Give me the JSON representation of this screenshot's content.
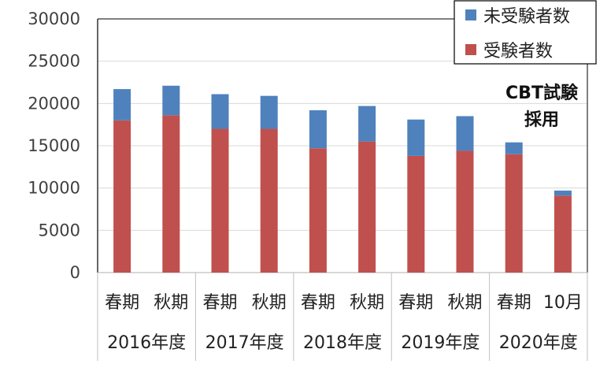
{
  "chart_data": {
    "type": "bar",
    "stacked": true,
    "categories": [
      "春期",
      "秋期",
      "春期",
      "秋期",
      "春期",
      "秋期",
      "春期",
      "秋期",
      "春期",
      "10月"
    ],
    "groups": [
      {
        "label": "2016年度",
        "span": 2
      },
      {
        "label": "2017年度",
        "span": 2
      },
      {
        "label": "2018年度",
        "span": 2
      },
      {
        "label": "2019年度",
        "span": 2
      },
      {
        "label": "2020年度",
        "span": 2
      }
    ],
    "series": [
      {
        "name": "受験者数",
        "color": "#c0504d",
        "values": [
          18000,
          18600,
          17000,
          17000,
          14700,
          15500,
          13800,
          14400,
          14000,
          9100
        ]
      },
      {
        "name": "未受験者数",
        "color": "#4f81bd",
        "values": [
          3700,
          3500,
          4100,
          3900,
          4500,
          4200,
          4300,
          4100,
          1400,
          600
        ]
      }
    ],
    "ylim": [
      0,
      30000
    ],
    "yticks": [
      "0",
      "5000",
      "10000",
      "15000",
      "20000",
      "25000",
      "30000"
    ],
    "legend_position": "top-right",
    "annotation": [
      "CBT試験",
      "採用"
    ],
    "grid": true
  }
}
